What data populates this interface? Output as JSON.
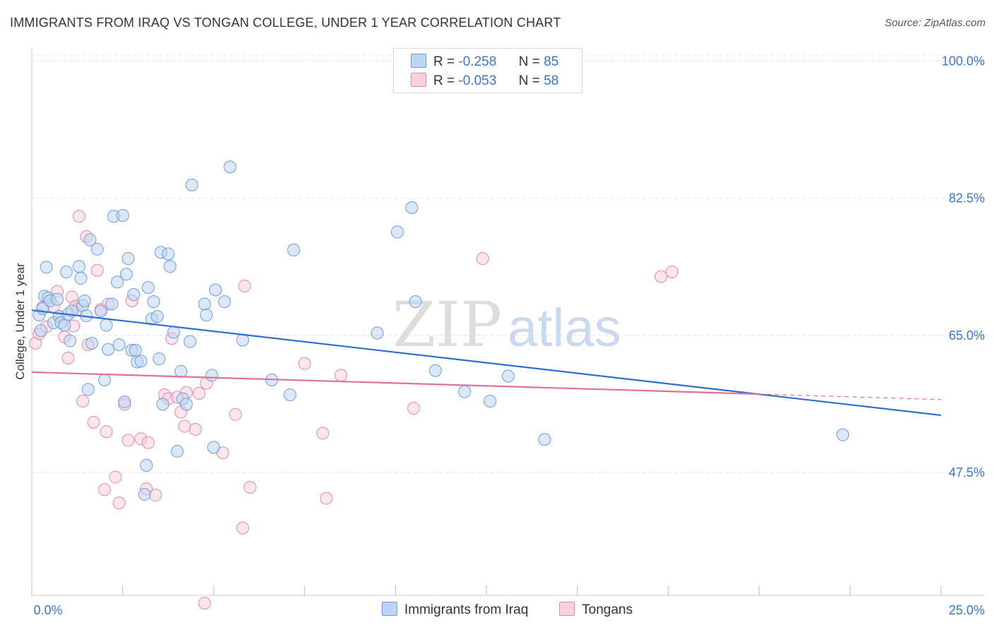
{
  "title": "IMMIGRANTS FROM IRAQ VS TONGAN COLLEGE, UNDER 1 YEAR CORRELATION CHART",
  "source": "Source: ZipAtlas.com",
  "watermark": {
    "zip": "ZIP",
    "atlas": "atlas"
  },
  "legend": {
    "rows": [
      {
        "r_label": "R =",
        "r_value": "-0.258",
        "n_label": "N =",
        "n_value": "85"
      },
      {
        "r_label": "R =",
        "r_value": "-0.053",
        "n_label": "N =",
        "n_value": "58"
      }
    ]
  },
  "bottom_legend": {
    "series1": "Immigrants from Iraq",
    "series2": "Tongans"
  },
  "colors": {
    "blue_fill": "#bcd5f4",
    "blue_stroke": "#6f9ad6",
    "blue_line": "#2f6fd0",
    "pink_fill": "#fbd0de",
    "pink_stroke": "#e08aa6",
    "pink_line": "#e0709a",
    "tick_label": "#3a74cc",
    "grid": "#e4e4e4"
  },
  "chart_data": {
    "type": "scatter",
    "title": "IMMIGRANTS FROM IRAQ VS TONGAN COLLEGE, UNDER 1 YEAR CORRELATION CHART",
    "xlabel": "",
    "ylabel": "College, Under 1 year",
    "xlim": [
      0,
      25
    ],
    "ylim": [
      31.8,
      101.5
    ],
    "x_tick_labels": [
      "0.0%",
      "25.0%"
    ],
    "y_ticks": [
      47.5,
      65.0,
      82.5,
      100.0
    ],
    "y_tick_labels": [
      "47.5%",
      "65.0%",
      "82.5%",
      "100.0%"
    ],
    "grid": true,
    "legend_position": "top-center",
    "series": [
      {
        "name": "Immigrants from Iraq",
        "R": -0.258,
        "N": 85,
        "trend": {
          "x": [
            0,
            25
          ],
          "y": [
            68.2,
            54.8
          ]
        },
        "points": [
          [
            0.2,
            67.6
          ],
          [
            0.3,
            68.4
          ],
          [
            0.25,
            65.6
          ],
          [
            0.35,
            70.0
          ],
          [
            0.4,
            73.7
          ],
          [
            0.45,
            69.8
          ],
          [
            0.5,
            69.4
          ],
          [
            0.6,
            66.6
          ],
          [
            0.7,
            69.6
          ],
          [
            0.75,
            67.4
          ],
          [
            0.8,
            66.6
          ],
          [
            0.9,
            66.3
          ],
          [
            0.95,
            73.1
          ],
          [
            1.0,
            67.7
          ],
          [
            1.05,
            64.3
          ],
          [
            1.1,
            68.1
          ],
          [
            1.3,
            73.8
          ],
          [
            1.35,
            72.3
          ],
          [
            1.4,
            68.8
          ],
          [
            1.45,
            69.4
          ],
          [
            1.5,
            67.5
          ],
          [
            1.55,
            58.1
          ],
          [
            1.6,
            77.2
          ],
          [
            1.65,
            64.0
          ],
          [
            1.8,
            76.0
          ],
          [
            1.9,
            68.1
          ],
          [
            2.0,
            59.3
          ],
          [
            2.05,
            66.3
          ],
          [
            2.1,
            63.2
          ],
          [
            2.2,
            69.0
          ],
          [
            2.25,
            80.2
          ],
          [
            2.35,
            71.8
          ],
          [
            2.4,
            63.8
          ],
          [
            2.5,
            80.3
          ],
          [
            2.55,
            56.5
          ],
          [
            2.6,
            72.8
          ],
          [
            2.65,
            74.8
          ],
          [
            2.75,
            63.1
          ],
          [
            2.8,
            70.2
          ],
          [
            2.85,
            63.1
          ],
          [
            2.9,
            61.6
          ],
          [
            3.0,
            61.7
          ],
          [
            3.1,
            44.7
          ],
          [
            3.15,
            48.4
          ],
          [
            3.2,
            71.1
          ],
          [
            3.3,
            67.1
          ],
          [
            3.35,
            69.3
          ],
          [
            3.45,
            67.4
          ],
          [
            3.5,
            62.0
          ],
          [
            3.55,
            75.6
          ],
          [
            3.6,
            56.2
          ],
          [
            3.75,
            75.4
          ],
          [
            3.8,
            73.8
          ],
          [
            3.9,
            65.4
          ],
          [
            4.0,
            50.2
          ],
          [
            4.1,
            60.4
          ],
          [
            4.15,
            56.9
          ],
          [
            4.25,
            56.2
          ],
          [
            4.35,
            64.2
          ],
          [
            4.4,
            84.2
          ],
          [
            4.75,
            69.0
          ],
          [
            4.8,
            67.6
          ],
          [
            4.95,
            59.9
          ],
          [
            5.0,
            50.7
          ],
          [
            5.05,
            70.8
          ],
          [
            5.3,
            69.3
          ],
          [
            5.45,
            86.5
          ],
          [
            5.8,
            64.4
          ],
          [
            6.6,
            59.3
          ],
          [
            7.1,
            57.4
          ],
          [
            7.2,
            75.9
          ],
          [
            9.5,
            65.3
          ],
          [
            10.05,
            78.2
          ],
          [
            10.45,
            81.3
          ],
          [
            10.55,
            69.3
          ],
          [
            11.1,
            60.5
          ],
          [
            11.9,
            57.8
          ],
          [
            12.6,
            56.6
          ],
          [
            13.1,
            59.8
          ],
          [
            14.1,
            51.7
          ],
          [
            22.3,
            52.3
          ]
        ]
      },
      {
        "name": "Tongans",
        "R": -0.053,
        "N": 58,
        "trend": {
          "x": [
            0,
            20
          ],
          "y": [
            60.3,
            57.5
          ]
        },
        "trend_dashed": {
          "x": [
            20,
            25
          ],
          "y": [
            57.5,
            56.8
          ]
        },
        "points": [
          [
            0.1,
            64.0
          ],
          [
            0.2,
            65.2
          ],
          [
            0.3,
            68.6
          ],
          [
            0.4,
            66.1
          ],
          [
            0.6,
            68.7
          ],
          [
            0.7,
            70.6
          ],
          [
            0.75,
            67.4
          ],
          [
            0.9,
            64.8
          ],
          [
            1.0,
            62.1
          ],
          [
            1.1,
            69.9
          ],
          [
            1.15,
            66.2
          ],
          [
            1.2,
            68.7
          ],
          [
            1.25,
            68.3
          ],
          [
            1.3,
            80.2
          ],
          [
            1.4,
            56.6
          ],
          [
            1.5,
            77.6
          ],
          [
            1.55,
            63.8
          ],
          [
            1.7,
            53.9
          ],
          [
            1.8,
            73.3
          ],
          [
            1.9,
            68.3
          ],
          [
            2.0,
            45.3
          ],
          [
            2.05,
            52.7
          ],
          [
            2.1,
            69.0
          ],
          [
            2.3,
            46.9
          ],
          [
            2.4,
            43.6
          ],
          [
            2.55,
            56.2
          ],
          [
            2.65,
            51.6
          ],
          [
            2.75,
            69.4
          ],
          [
            3.0,
            51.8
          ],
          [
            3.15,
            45.4
          ],
          [
            3.2,
            51.3
          ],
          [
            3.4,
            44.6
          ],
          [
            3.65,
            57.4
          ],
          [
            3.75,
            56.9
          ],
          [
            3.85,
            64.6
          ],
          [
            4.0,
            57.1
          ],
          [
            4.1,
            55.2
          ],
          [
            4.2,
            53.4
          ],
          [
            4.25,
            57.7
          ],
          [
            4.5,
            53.0
          ],
          [
            4.6,
            57.6
          ],
          [
            4.75,
            30.8
          ],
          [
            4.8,
            58.9
          ],
          [
            5.25,
            50.0
          ],
          [
            5.6,
            54.9
          ],
          [
            5.8,
            40.4
          ],
          [
            5.85,
            71.3
          ],
          [
            6.0,
            45.6
          ],
          [
            7.5,
            61.4
          ],
          [
            8.0,
            52.5
          ],
          [
            8.1,
            44.2
          ],
          [
            8.5,
            59.9
          ],
          [
            10.5,
            55.7
          ],
          [
            12.4,
            74.8
          ],
          [
            17.3,
            72.5
          ],
          [
            17.6,
            73.1
          ]
        ]
      }
    ]
  }
}
